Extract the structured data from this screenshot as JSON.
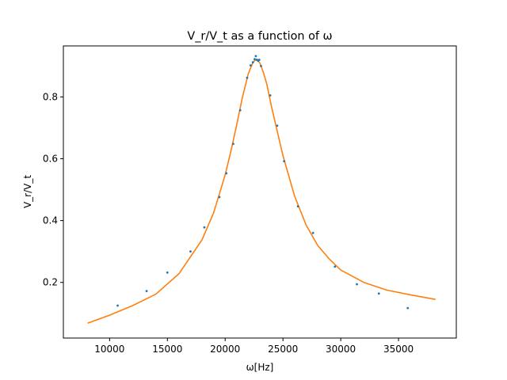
{
  "chart_data": {
    "type": "scatter",
    "title": "V_r/V_t as a function of ω",
    "xlabel": "ω[Hz]",
    "ylabel": "V_r/V_t",
    "xlim": [
      6000,
      40000
    ],
    "ylim": [
      0.02,
      0.965
    ],
    "xticks": [
      10000,
      15000,
      20000,
      25000,
      30000,
      35000
    ],
    "xtick_labels": [
      "10000",
      "15000",
      "20000",
      "25000",
      "30000",
      "35000"
    ],
    "yticks": [
      0.2,
      0.4,
      0.6,
      0.8
    ],
    "ytick_labels": [
      "0.2",
      "0.4",
      "0.6",
      "0.8"
    ],
    "grid": false,
    "legend": "none",
    "series": [
      {
        "kind": "scatter",
        "color": "#1f77b4",
        "x": [
          10700,
          13200,
          15000,
          17000,
          18200,
          19500,
          20100,
          20700,
          21300,
          21900,
          22200,
          22400,
          22550,
          22650,
          22750,
          22850,
          22950,
          23100,
          23900,
          24500,
          25100,
          26300,
          27600,
          29500,
          31400,
          33300,
          35800
        ],
        "y": [
          0.125,
          0.172,
          0.232,
          0.3,
          0.378,
          0.476,
          0.553,
          0.648,
          0.757,
          0.862,
          0.902,
          0.912,
          0.922,
          0.932,
          0.92,
          0.917,
          0.92,
          0.9,
          0.805,
          0.707,
          0.592,
          0.446,
          0.36,
          0.251,
          0.194,
          0.164,
          0.117
        ]
      },
      {
        "kind": "line",
        "color": "#ff7f0e",
        "x": [
          8100,
          10000,
          12000,
          14000,
          16000,
          18000,
          19000,
          20000,
          20500,
          21000,
          21500,
          22000,
          22400,
          22700,
          23000,
          23300,
          23600,
          24000,
          24500,
          25000,
          26000,
          27000,
          28000,
          29000,
          30000,
          32000,
          34000,
          36000,
          38200
        ],
        "y": [
          0.068,
          0.094,
          0.125,
          0.162,
          0.228,
          0.338,
          0.425,
          0.548,
          0.625,
          0.71,
          0.8,
          0.875,
          0.912,
          0.922,
          0.91,
          0.88,
          0.842,
          0.77,
          0.69,
          0.61,
          0.48,
          0.386,
          0.32,
          0.276,
          0.24,
          0.2,
          0.175,
          0.16,
          0.145
        ]
      }
    ]
  }
}
